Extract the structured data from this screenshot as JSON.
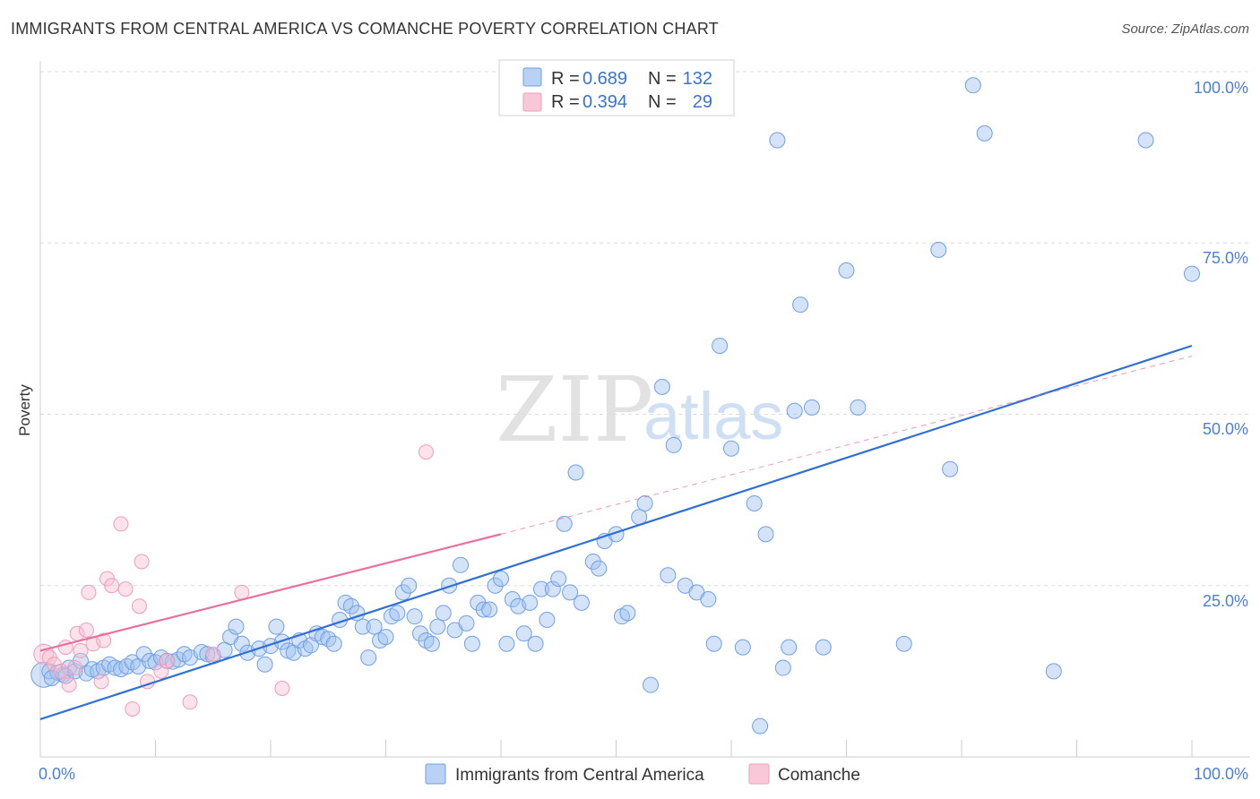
{
  "title": "IMMIGRANTS FROM CENTRAL AMERICA VS COMANCHE POVERTY CORRELATION CHART",
  "source": "Source: ZipAtlas.com",
  "watermark": {
    "part1": "ZIP",
    "part2": "atlas"
  },
  "colors": {
    "blue": "#6fa0e6",
    "pink": "#f29bb6",
    "blue_line": "#2f6fd6",
    "pink_line": "#e8709a"
  },
  "legend": {
    "rows": [
      {
        "r_label": "R = ",
        "r_value": "0.689",
        "n_label": "N = ",
        "n_value": "132"
      },
      {
        "r_label": "R = ",
        "r_value": "0.394",
        "n_label": "N = ",
        "n_value": "29"
      }
    ]
  },
  "bottom_legend": [
    "Immigrants from Central America",
    "Comanche"
  ],
  "chart_data": {
    "type": "scatter",
    "title": "IMMIGRANTS FROM CENTRAL AMERICA VS COMANCHE POVERTY CORRELATION CHART",
    "xlabel": "",
    "ylabel": "Poverty",
    "xlim": [
      0,
      100
    ],
    "ylim": [
      0,
      100
    ],
    "x_tick_labels": [
      "0.0%",
      "100.0%"
    ],
    "y_tick_labels": [
      "25.0%",
      "50.0%",
      "75.0%",
      "100.0%"
    ],
    "y_ticks": [
      25,
      50,
      75,
      100
    ],
    "grid": true,
    "series": [
      {
        "name": "Immigrants from Central America",
        "color": "#6fa0e6",
        "R": 0.689,
        "N": 132,
        "trend": {
          "x0": 0,
          "y0": 5.5,
          "x1": 100,
          "y1": 60
        },
        "points": [
          [
            0.3,
            12
          ],
          [
            0.8,
            12.5
          ],
          [
            1.5,
            12.3
          ],
          [
            2,
            12
          ],
          [
            2.5,
            13
          ],
          [
            3,
            12.5
          ],
          [
            3.5,
            14
          ],
          [
            4,
            12.2
          ],
          [
            4.5,
            12.8
          ],
          [
            5,
            12.5
          ],
          [
            5.5,
            13
          ],
          [
            6,
            13.5
          ],
          [
            6.5,
            13
          ],
          [
            7,
            12.8
          ],
          [
            7.5,
            13.2
          ],
          [
            8,
            13.8
          ],
          [
            8.5,
            13.2
          ],
          [
            9,
            15
          ],
          [
            9.5,
            14
          ],
          [
            10,
            13.8
          ],
          [
            10.5,
            14.5
          ],
          [
            11,
            14
          ],
          [
            11.5,
            13.9
          ],
          [
            12,
            14.2
          ],
          [
            12.5,
            15
          ],
          [
            13,
            14.5
          ],
          [
            14,
            15.3
          ],
          [
            14.5,
            15
          ],
          [
            15,
            14.7
          ],
          [
            16,
            15.6
          ],
          [
            16.5,
            17.5
          ],
          [
            17,
            19
          ],
          [
            17.5,
            16.5
          ],
          [
            18,
            15.2
          ],
          [
            19,
            15.8
          ],
          [
            19.5,
            13.5
          ],
          [
            20,
            16.2
          ],
          [
            20.5,
            19
          ],
          [
            21,
            16.8
          ],
          [
            21.5,
            15.5
          ],
          [
            22,
            15.2
          ],
          [
            22.5,
            17
          ],
          [
            23,
            15.8
          ],
          [
            23.5,
            16.3
          ],
          [
            24,
            18
          ],
          [
            24.5,
            17.5
          ],
          [
            25,
            17.2
          ],
          [
            25.5,
            16.5
          ],
          [
            26,
            20
          ],
          [
            26.5,
            22.5
          ],
          [
            27,
            22
          ],
          [
            27.5,
            21
          ],
          [
            28,
            19
          ],
          [
            28.5,
            14.5
          ],
          [
            29,
            19
          ],
          [
            29.5,
            17
          ],
          [
            30,
            17.5
          ],
          [
            30.5,
            20.5
          ],
          [
            31,
            21
          ],
          [
            31.5,
            24
          ],
          [
            32,
            25
          ],
          [
            32.5,
            20.5
          ],
          [
            33,
            18
          ],
          [
            33.5,
            17
          ],
          [
            34,
            16.5
          ],
          [
            34.5,
            19
          ],
          [
            35,
            21
          ],
          [
            35.5,
            25
          ],
          [
            36,
            18.5
          ],
          [
            36.5,
            28
          ],
          [
            37,
            19.5
          ],
          [
            37.5,
            16.5
          ],
          [
            38,
            22.5
          ],
          [
            38.5,
            21.5
          ],
          [
            39,
            21.5
          ],
          [
            39.5,
            25
          ],
          [
            40,
            26
          ],
          [
            40.5,
            16.5
          ],
          [
            41,
            23
          ],
          [
            41.5,
            22
          ],
          [
            42,
            18
          ],
          [
            42.5,
            22.5
          ],
          [
            43,
            16.5
          ],
          [
            43.5,
            24.5
          ],
          [
            44,
            20
          ],
          [
            44.5,
            24.5
          ],
          [
            45,
            26
          ],
          [
            45.5,
            34
          ],
          [
            46,
            24
          ],
          [
            46.5,
            41.5
          ],
          [
            47,
            22.5
          ],
          [
            48,
            28.5
          ],
          [
            48.5,
            27.5
          ],
          [
            49,
            31.5
          ],
          [
            50,
            32.5
          ],
          [
            50.5,
            20.5
          ],
          [
            51,
            21
          ],
          [
            52,
            35
          ],
          [
            52.5,
            37
          ],
          [
            53,
            10.5
          ],
          [
            54,
            54
          ],
          [
            54.5,
            26.5
          ],
          [
            55,
            45.5
          ],
          [
            56,
            25
          ],
          [
            57,
            24
          ],
          [
            58,
            23
          ],
          [
            58.5,
            16.5
          ],
          [
            59,
            60
          ],
          [
            60,
            45
          ],
          [
            61,
            16
          ],
          [
            62,
            37
          ],
          [
            62.5,
            4.5
          ],
          [
            63,
            32.5
          ],
          [
            64,
            90
          ],
          [
            64.5,
            13
          ],
          [
            65,
            16
          ],
          [
            66,
            66
          ],
          [
            67,
            51
          ],
          [
            68,
            16
          ],
          [
            70,
            71
          ],
          [
            71,
            51
          ],
          [
            75,
            16.5
          ],
          [
            78,
            74
          ],
          [
            79,
            42
          ],
          [
            81,
            98
          ],
          [
            82,
            91
          ],
          [
            88,
            12.5
          ],
          [
            96,
            90
          ],
          [
            100,
            70.5
          ],
          [
            1,
            11.5
          ],
          [
            2.2,
            11.8
          ],
          [
            65.5,
            50.5
          ]
        ]
      },
      {
        "name": "Comanche",
        "color": "#f29bb6",
        "R": 0.394,
        "N": 29,
        "trend": {
          "x0": 0,
          "y0": 15.5,
          "x1": 40,
          "y1": 32.5
        },
        "trend_dashed": {
          "x0": 40,
          "y0": 32.5,
          "x1": 100,
          "y1": 58.5
        },
        "points": [
          [
            0.3,
            15
          ],
          [
            0.8,
            14.5
          ],
          [
            1.2,
            13.5
          ],
          [
            1.8,
            12.5
          ],
          [
            2.2,
            16
          ],
          [
            2.5,
            10.5
          ],
          [
            3,
            13
          ],
          [
            3.2,
            18
          ],
          [
            3.5,
            15.5
          ],
          [
            4,
            18.5
          ],
          [
            4.2,
            24
          ],
          [
            4.6,
            16.5
          ],
          [
            5.3,
            11
          ],
          [
            5.5,
            17
          ],
          [
            5.8,
            26
          ],
          [
            6.2,
            25
          ],
          [
            7,
            34
          ],
          [
            7.4,
            24.5
          ],
          [
            8,
            7
          ],
          [
            8.6,
            22
          ],
          [
            8.8,
            28.5
          ],
          [
            9.3,
            11
          ],
          [
            10.5,
            12.5
          ],
          [
            11,
            14
          ],
          [
            13,
            8
          ],
          [
            15,
            15
          ],
          [
            17.5,
            24
          ],
          [
            21,
            10
          ],
          [
            33.5,
            44.5
          ]
        ]
      }
    ]
  }
}
